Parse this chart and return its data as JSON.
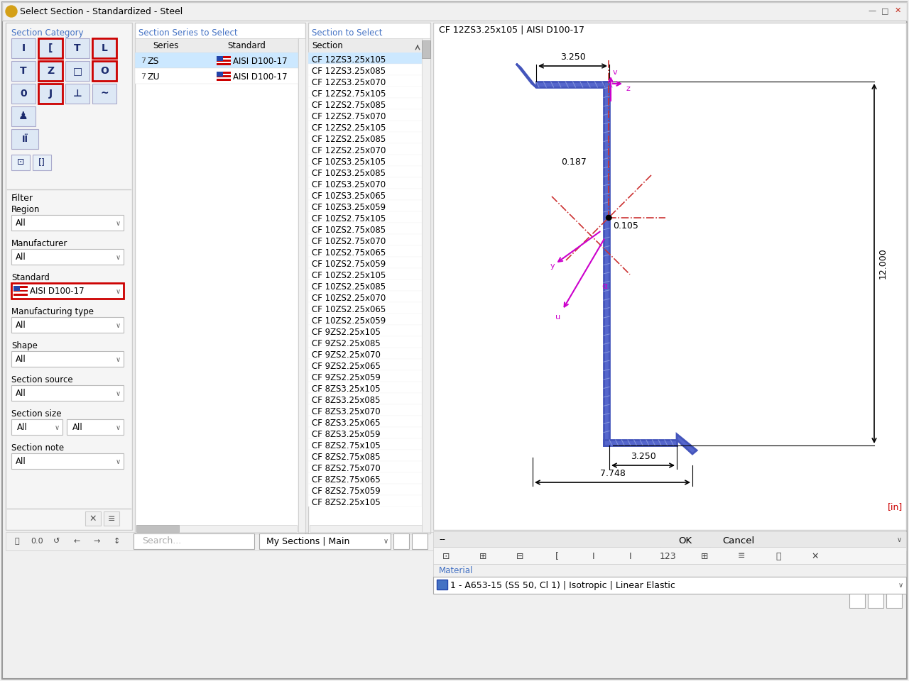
{
  "title": "Select Section - Standardized - Steel",
  "section_cat_label": "Section Category",
  "section_series_label": "Section Series to Select",
  "section_to_select_label": "Section to Select",
  "filter_label": "Filter",
  "region_label": "Region",
  "manufacturer_label": "Manufacturer",
  "standard_label": "Standard",
  "mfg_type_label": "Manufacturing type",
  "shape_label": "Shape",
  "section_source_label": "Section source",
  "section_size_label": "Section size",
  "section_note_label": "Section note",
  "series_items": [
    "ZS",
    "ZU"
  ],
  "standard_items": [
    "AISI D100-17",
    "AISI D100-17"
  ],
  "section_items": [
    "CF 12ZS3.25x105",
    "CF 12ZS3.25x085",
    "CF 12ZS3.25x070",
    "CF 12ZS2.75x105",
    "CF 12ZS2.75x085",
    "CF 12ZS2.75x070",
    "CF 12ZS2.25x105",
    "CF 12ZS2.25x085",
    "CF 12ZS2.25x070",
    "CF 10ZS3.25x105",
    "CF 10ZS3.25x085",
    "CF 10ZS3.25x070",
    "CF 10ZS3.25x065",
    "CF 10ZS3.25x059",
    "CF 10ZS2.75x105",
    "CF 10ZS2.75x085",
    "CF 10ZS2.75x070",
    "CF 10ZS2.75x065",
    "CF 10ZS2.75x059",
    "CF 10ZS2.25x105",
    "CF 10ZS2.25x085",
    "CF 10ZS2.25x070",
    "CF 10ZS2.25x065",
    "CF 10ZS2.25x059",
    "CF 9ZS2.25x105",
    "CF 9ZS2.25x085",
    "CF 9ZS2.25x070",
    "CF 9ZS2.25x065",
    "CF 9ZS2.25x059",
    "CF 8ZS3.25x105",
    "CF 8ZS3.25x085",
    "CF 8ZS3.25x070",
    "CF 8ZS3.25x065",
    "CF 8ZS3.25x059",
    "CF 8ZS2.75x105",
    "CF 8ZS2.75x085",
    "CF 8ZS2.75x070",
    "CF 8ZS2.75x065",
    "CF 8ZS2.75x059",
    "CF 8ZS2.25x105"
  ],
  "preview_title": "CF 12ZS3.25x105 | AISI D100-17",
  "material_text": "1 - A653-15 (SS 50, Cl 1) | Isotropic | Linear Elastic",
  "unit_text": "[in]",
  "dim_3250_top": "3.250",
  "dim_0187": "0.187",
  "dim_0105": "0.105",
  "dim_12000": "12.000",
  "dim_3250_bot": "3.250",
  "dim_7748": "7.748",
  "ok_label": "OK",
  "cancel_label": "Cancel",
  "search_placeholder": "Search...",
  "my_sections_label": "My Sections | Main",
  "material_label": "Material",
  "window_bg": "#f0f0f0",
  "panel_white": "#ffffff",
  "header_blue": "#4472c4",
  "highlight_blue": "#cce8ff",
  "btn_bg": "#dde8f5",
  "red_border": "#cc0000",
  "gray_border": "#bbbbbb",
  "dark_blue": "#1a2a6e",
  "shape_blue": "#4455bb",
  "shape_fill": "#5566cc",
  "hatch_color": "#8899dd",
  "dim_color": "#000000",
  "magenta": "#cc00cc",
  "dashed_red": "#cc3333"
}
